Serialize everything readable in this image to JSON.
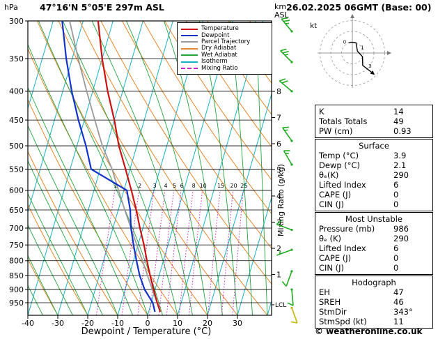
{
  "header": {
    "pressure_unit": "hPa",
    "station": "47°16'N 5°05'E 297m ASL",
    "datetime": "26.02.2025 06GMT (Base: 00)"
  },
  "axes": {
    "bottom_label": "Dewpoint / Temperature (°C)",
    "km_label": "km",
    "asl_label": "ASL",
    "mixing_ratio_label": "Mixing Ratio (g/kg)",
    "lcl_label": "LCL"
  },
  "legend": {
    "items": [
      {
        "label": "Temperature",
        "color": "#cc1111",
        "style": "solid"
      },
      {
        "label": "Dewpoint",
        "color": "#1133cc",
        "style": "solid"
      },
      {
        "label": "Parcel Trajectory",
        "color": "#999999",
        "style": "solid"
      },
      {
        "label": "Dry Adiabat",
        "color": "#e6862a",
        "style": "solid"
      },
      {
        "label": "Wet Adiabat",
        "color": "#23a33c",
        "style": "solid"
      },
      {
        "label": "Isotherm",
        "color": "#14b0c4",
        "style": "solid"
      },
      {
        "label": "Mixing Ratio",
        "color": "#cc22cc",
        "style": "dashed"
      }
    ]
  },
  "hodograph": {
    "unit": "kt",
    "ring_step_kt": 10,
    "rings": 3,
    "trace": [
      {
        "dir_deg": 160,
        "speed_kt": 10
      },
      {
        "dir_deg": 175,
        "speed_kt": 10
      },
      {
        "dir_deg": 200,
        "speed_kt": 10
      },
      {
        "dir_deg": 250,
        "speed_kt": 5
      },
      {
        "dir_deg": 290,
        "speed_kt": 10
      },
      {
        "dir_deg": 320,
        "speed_kt": 15
      },
      {
        "dir_deg": 315,
        "speed_kt": 25
      }
    ],
    "height_marks": [
      {
        "text": "0",
        "near_index": 0
      },
      {
        "text": "1",
        "near_index": 3
      },
      {
        "text": "3",
        "near_index": 5
      }
    ]
  },
  "panels": {
    "indices": {
      "rows": [
        {
          "label": "K",
          "value": "14"
        },
        {
          "label": "Totals Totals",
          "value": "49"
        },
        {
          "label": "PW (cm)",
          "value": "0.93"
        }
      ]
    },
    "surface": {
      "title": "Surface",
      "rows": [
        {
          "label": "Temp (°C)",
          "value": "3.9"
        },
        {
          "label": "Dewp (°C)",
          "value": "2.1"
        },
        {
          "label": "θₑ(K)",
          "value": "290"
        },
        {
          "label": "Lifted Index",
          "value": "6"
        },
        {
          "label": "CAPE (J)",
          "value": "0"
        },
        {
          "label": "CIN (J)",
          "value": "0"
        }
      ]
    },
    "most_unstable": {
      "title": "Most Unstable",
      "rows": [
        {
          "label": "Pressure (mb)",
          "value": "986"
        },
        {
          "label": "θₑ (K)",
          "value": "290"
        },
        {
          "label": "Lifted Index",
          "value": "6"
        },
        {
          "label": "CAPE (J)",
          "value": "0"
        },
        {
          "label": "CIN (J)",
          "value": "0"
        }
      ]
    },
    "hodograph_panel": {
      "title": "Hodograph",
      "rows": [
        {
          "label": "EH",
          "value": "47"
        },
        {
          "label": "SREH",
          "value": "46"
        },
        {
          "label": "StmDir",
          "value": "343°"
        },
        {
          "label": "StmSpd (kt)",
          "value": "11"
        }
      ]
    }
  },
  "footer": {
    "copyright": "© weatheronline.co.uk"
  },
  "chart_data": {
    "type": "skewt_log_p_sounding",
    "pressure_levels_hpa": [
      300,
      350,
      400,
      450,
      500,
      550,
      600,
      650,
      700,
      750,
      800,
      850,
      900,
      950
    ],
    "temp_axis_c": [
      -40,
      -30,
      -20,
      -10,
      0,
      10,
      20,
      30
    ],
    "km_asl_ticks": [
      8,
      7,
      6,
      5,
      4,
      3,
      2,
      1
    ],
    "mixing_ratio_gkg": [
      1,
      2,
      3,
      4,
      5,
      6,
      8,
      10,
      15,
      20,
      25
    ],
    "isotherm_step_c": 10,
    "dry_adiabat_step_c": 10,
    "wet_adiabat_step_c": 5,
    "lcl_pressure_hpa": 958,
    "sounding": {
      "pressure_hpa": [
        986,
        950,
        900,
        850,
        800,
        750,
        700,
        650,
        600,
        550,
        500,
        450,
        400,
        350,
        300
      ],
      "temperature_c": [
        3.9,
        2.0,
        -0.5,
        -3.0,
        -5.5,
        -8.0,
        -11.0,
        -14.0,
        -17.5,
        -21.5,
        -26.0,
        -30.0,
        -35.0,
        -40.0,
        -45.0
      ],
      "dewpoint_c": [
        2.1,
        0.5,
        -3.5,
        -6.5,
        -9.0,
        -11.5,
        -14.0,
        -16.0,
        -19.0,
        -33.0,
        -37.0,
        -42.0,
        -47.0,
        -52.0,
        -57.0
      ],
      "parcel_c": [
        3.9,
        2.0,
        -0.9,
        -3.9,
        -7.0,
        -10.4,
        -14.0,
        -17.8,
        -21.8,
        -26.0,
        -31.5,
        -36.5,
        -42.0,
        -48.0,
        -54.5
      ]
    },
    "winds_kt": [
      {
        "pressure_hpa": 970,
        "dir_deg": 160,
        "speed_kt": 10,
        "color": "yellow"
      },
      {
        "pressure_hpa": 900,
        "dir_deg": 175,
        "speed_kt": 10,
        "color": "green"
      },
      {
        "pressure_hpa": 835,
        "dir_deg": 200,
        "speed_kt": 10,
        "color": "green"
      },
      {
        "pressure_hpa": 765,
        "dir_deg": 250,
        "speed_kt": 5,
        "color": "green"
      },
      {
        "pressure_hpa": 705,
        "dir_deg": 290,
        "speed_kt": 10,
        "color": "green"
      },
      {
        "pressure_hpa": 540,
        "dir_deg": 330,
        "speed_kt": 15,
        "color": "green"
      },
      {
        "pressure_hpa": 490,
        "dir_deg": 325,
        "speed_kt": 15,
        "color": "green"
      },
      {
        "pressure_hpa": 400,
        "dir_deg": 310,
        "speed_kt": 20,
        "color": "green"
      },
      {
        "pressure_hpa": 355,
        "dir_deg": 315,
        "speed_kt": 25,
        "color": "green"
      },
      {
        "pressure_hpa": 313,
        "dir_deg": 320,
        "speed_kt": 25,
        "color": "green"
      }
    ],
    "colors": {
      "temperature": "#cc1111",
      "dewpoint": "#1133cc",
      "parcel": "#999999",
      "dry_adiabat": "#e6862a",
      "wet_adiabat": "#23a33c",
      "isotherm": "#14b0c4",
      "mixing_ratio": "#cc22cc",
      "grid": "#000000",
      "wind_barb_green": "#1faa1f",
      "wind_barb_yellow": "#c2b400"
    }
  }
}
